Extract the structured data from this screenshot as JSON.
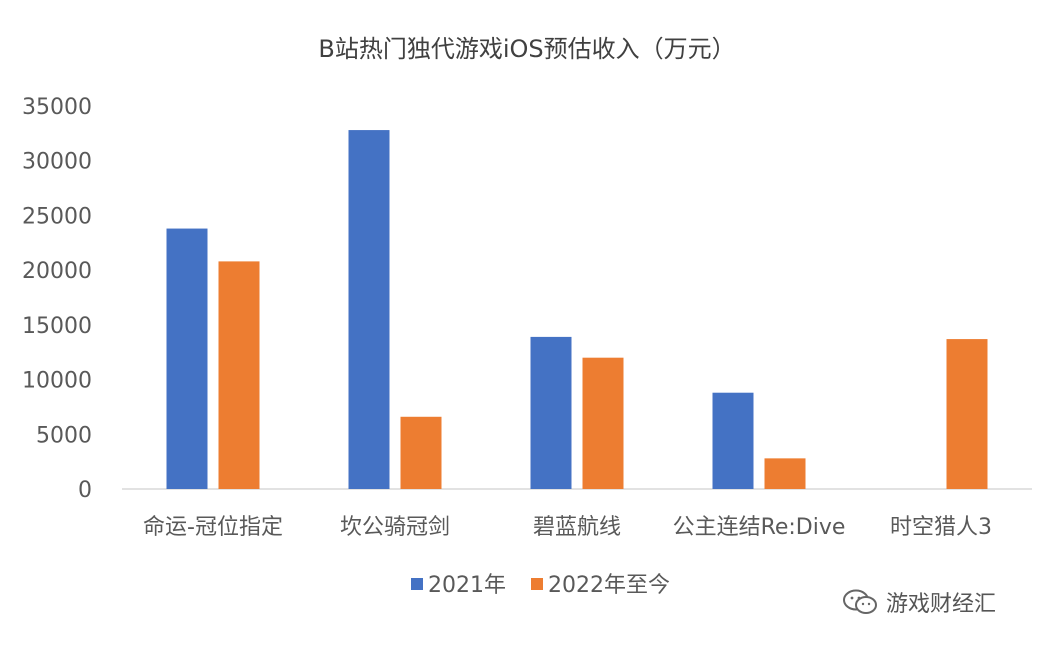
{
  "chart_data": {
    "type": "bar",
    "title": "B站热门独代游戏iOS预估收入（万元）",
    "categories": [
      "命运-冠位指定",
      "坎公骑冠剑",
      "碧蓝航线",
      "公主连结Re:Dive",
      "时空猎人3"
    ],
    "series": [
      {
        "name": "2021年",
        "color": "#4472C4",
        "values": [
          23800,
          32800,
          13900,
          8800,
          0
        ]
      },
      {
        "name": "2022年至今",
        "color": "#ED7D31",
        "values": [
          20800,
          6600,
          12000,
          2800,
          13700
        ]
      }
    ],
    "ylim": [
      0,
      35000
    ],
    "yticks": [
      0,
      5000,
      10000,
      15000,
      20000,
      25000,
      30000,
      35000
    ],
    "grid": false,
    "legend_position": "bottom"
  },
  "watermark": {
    "text": "游戏财经汇",
    "icon": "wechat-icon"
  }
}
